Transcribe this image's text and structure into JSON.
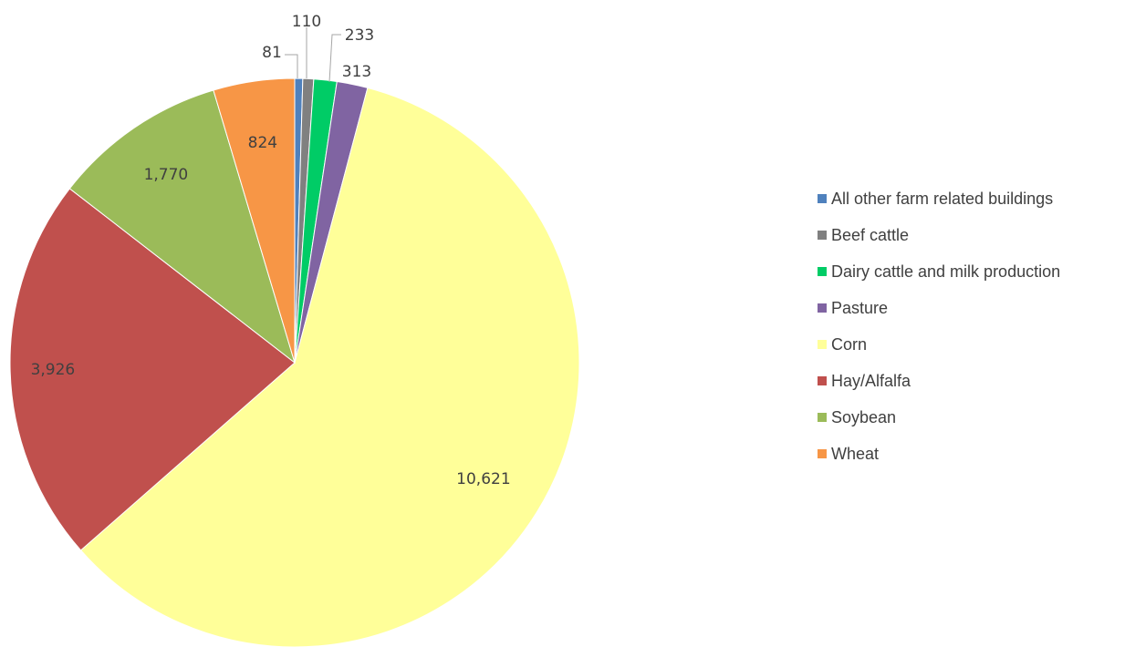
{
  "chart_data": {
    "type": "pie",
    "title": "",
    "categories": [
      "All other farm related buildings",
      "Beef cattle",
      "Dairy cattle and milk production",
      "Pasture",
      "Corn",
      "Hay/Alfalfa",
      "Soybean",
      "Wheat"
    ],
    "values": [
      81,
      110,
      233,
      313,
      10621,
      3926,
      1770,
      824
    ],
    "data_labels": [
      "81",
      "110",
      "233",
      "313",
      "10,621",
      "3,926",
      "1,770",
      "824"
    ],
    "colors": [
      "#4f81bd",
      "#808080",
      "#00cc66",
      "#8064a2",
      "#ffff99",
      "#c0504d",
      "#9bbb59",
      "#f79646"
    ],
    "start_angle": "12 o'clock",
    "direction": "clockwise",
    "legend_position": "right"
  }
}
